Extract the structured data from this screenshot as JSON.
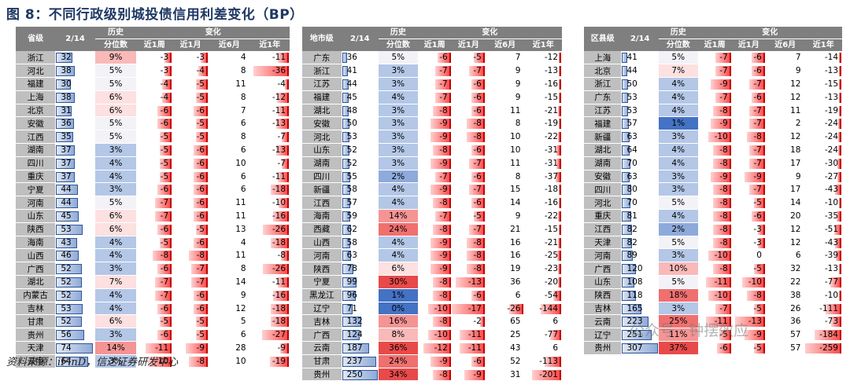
{
  "title": "图 8：不同行政级别城投债信用利差变化（BP）",
  "source": "资料来源：iFinD，信达证券研发中心",
  "watermark": "公众号 · 钟摆效应",
  "tables": [
    {
      "h": {
        "name": "省级",
        "lev": "2/14",
        "pct1": "历史",
        "pct2": "分位数",
        "chg": "变化",
        "w1": "近1周",
        "m1": "近1月",
        "m6": "近6月",
        "y1": "近1年"
      },
      "rows": [
        [
          "浙江",
          32,
          "9%",
          -3,
          -3,
          4,
          -11
        ],
        [
          "河北",
          38,
          "5%",
          -3,
          -4,
          8,
          -36
        ],
        [
          "福建",
          30,
          "5%",
          -4,
          -5,
          11,
          -4
        ],
        [
          "上海",
          38,
          "6%",
          -4,
          -5,
          8,
          -12
        ],
        [
          "北京",
          31,
          "6%",
          -6,
          -6,
          7,
          -11
        ],
        [
          "安徽",
          36,
          "5%",
          -6,
          -5,
          6,
          -13
        ],
        [
          "江西",
          35,
          "5%",
          -5,
          -5,
          8,
          -7
        ],
        [
          "湖南",
          37,
          "3%",
          -5,
          -6,
          6,
          -13
        ],
        [
          "四川",
          37,
          "4%",
          -5,
          -6,
          10,
          -7
        ],
        [
          "重庆",
          37,
          "4%",
          -5,
          -6,
          6,
          -11
        ],
        [
          "宁夏",
          44,
          "3%",
          -6,
          -6,
          6,
          -18
        ],
        [
          "河南",
          44,
          "5%",
          -7,
          -6,
          11,
          -10
        ],
        [
          "山东",
          45,
          "6%",
          -7,
          -6,
          11,
          -16
        ],
        [
          "陕西",
          53,
          "6%",
          -6,
          -5,
          13,
          -26
        ],
        [
          "海南",
          43,
          "4%",
          -5,
          -6,
          4,
          -18
        ],
        [
          "山西",
          46,
          "4%",
          -8,
          -8,
          11,
          -8
        ],
        [
          "广西",
          52,
          "3%",
          -6,
          -7,
          8,
          -26
        ],
        [
          "湖北",
          52,
          "7%",
          -7,
          -7,
          14,
          -11
        ],
        [
          "内蒙古",
          52,
          "4%",
          -7,
          -6,
          9,
          -16
        ],
        [
          "吉林",
          53,
          "4%",
          -6,
          -6,
          12,
          -18
        ],
        [
          "甘肃",
          52,
          "6%",
          -5,
          -5,
          5,
          -18
        ],
        [
          "贵州",
          56,
          "3%",
          -6,
          -5,
          6,
          -27
        ],
        [
          "天津",
          74,
          "14%",
          -11,
          -9,
          28,
          -9
        ],
        [
          "云南",
          64,
          "3%",
          -10,
          -8,
          10,
          -19
        ]
      ]
    },
    {
      "h": {
        "name": "地市级",
        "lev": "2/14",
        "pct1": "历史",
        "pct2": "分位数",
        "chg": "变化",
        "w1": "近1周",
        "m1": "近1月",
        "m6": "近6月",
        "y1": "近1年"
      },
      "rows": [
        [
          "广东",
          36,
          "5%",
          -6,
          -5,
          7,
          -12
        ],
        [
          "浙江",
          41,
          "3%",
          -7,
          -7,
          9,
          -13
        ],
        [
          "江苏",
          44,
          "3%",
          -7,
          -6,
          9,
          -16
        ],
        [
          "福建",
          45,
          "4%",
          -7,
          -6,
          9,
          -15
        ],
        [
          "湖北",
          48,
          "3%",
          -8,
          -6,
          11,
          -21
        ],
        [
          "安徽",
          50,
          "3%",
          -9,
          -8,
          8,
          -19
        ],
        [
          "河北",
          53,
          "3%",
          -9,
          -8,
          10,
          -22
        ],
        [
          "山东",
          52,
          "3%",
          -8,
          -6,
          10,
          -31
        ],
        [
          "湖南",
          52,
          "3%",
          -9,
          -7,
          11,
          -31
        ],
        [
          "四川",
          55,
          "2%",
          -7,
          -6,
          8,
          -37
        ],
        [
          "新疆",
          58,
          "4%",
          -9,
          -7,
          15,
          -18
        ],
        [
          "江西",
          57,
          "4%",
          -8,
          -6,
          14,
          -16
        ],
        [
          "海南",
          59,
          "14%",
          -7,
          -5,
          9,
          -22
        ],
        [
          "西藏",
          62,
          "24%",
          -8,
          -7,
          21,
          -15
        ],
        [
          "山西",
          58,
          "4%",
          -9,
          -8,
          16,
          -21
        ],
        [
          "河南",
          63,
          "4%",
          -9,
          -8,
          16,
          -25
        ],
        [
          "陕西",
          78,
          "6%",
          -9,
          -8,
          19,
          -23
        ],
        [
          "宁夏",
          99,
          "30%",
          -8,
          -13,
          36,
          -20
        ],
        [
          "黑龙江",
          96,
          "1%",
          -8,
          -6,
          6,
          -54
        ],
        [
          "辽宁",
          71,
          "0%",
          -10,
          -17,
          -26,
          -144
        ],
        [
          "吉林",
          132,
          "16%",
          -8,
          -2,
          65,
          6
        ],
        [
          "广西",
          124,
          "8%",
          -10,
          -11,
          25,
          -77
        ],
        [
          "云南",
          187,
          "36%",
          -12,
          -11,
          43,
          6
        ],
        [
          "甘肃",
          237,
          "24%",
          -9,
          -6,
          52,
          -113
        ],
        [
          "贵州",
          250,
          "34%",
          -8,
          -9,
          31,
          -201
        ]
      ]
    },
    {
      "h": {
        "name": "区县级",
        "lev": "2/14",
        "pct1": "历史",
        "pct2": "分位数",
        "chg": "变化",
        "w1": "近1周",
        "m1": "近1月",
        "m6": "近6月",
        "y1": "近1年"
      },
      "rows": [
        [
          "上海",
          41,
          "5%",
          -7,
          -6,
          7,
          -14
        ],
        [
          "北京",
          44,
          "7%",
          -7,
          -6,
          9,
          -13
        ],
        [
          "浙江",
          50,
          "4%",
          -9,
          -7,
          12,
          -15
        ],
        [
          "广东",
          53,
          "4%",
          -7,
          -6,
          12,
          -13
        ],
        [
          "江苏",
          53,
          "4%",
          -8,
          -7,
          11,
          -19
        ],
        [
          "福建",
          57,
          "1%",
          -9,
          -7,
          2,
          -24
        ],
        [
          "新疆",
          63,
          "3%",
          -10,
          -8,
          12,
          -24
        ],
        [
          "湖北",
          64,
          "4%",
          -8,
          -7,
          18,
          -24
        ],
        [
          "湖南",
          70,
          "4%",
          -8,
          -7,
          17,
          -30
        ],
        [
          "安徽",
          63,
          "3%",
          -9,
          -9,
          9,
          -27
        ],
        [
          "四川",
          80,
          "3%",
          -8,
          -7,
          17,
          -43
        ],
        [
          "河北",
          70,
          "5%",
          -8,
          -5,
          14,
          -10
        ],
        [
          "重庆",
          81,
          "4%",
          -8,
          -6,
          20,
          -35
        ],
        [
          "江西",
          82,
          "2%",
          -8,
          -3,
          12,
          -51
        ],
        [
          "天津",
          82,
          "5%",
          -8,
          -3,
          12,
          -43
        ],
        [
          "河南",
          89,
          "3%",
          -10,
          0,
          6,
          -39
        ],
        [
          "广西",
          120,
          "10%",
          -8,
          -5,
          32,
          -13
        ],
        [
          "山东",
          108,
          "5%",
          -11,
          -10,
          22,
          -77
        ],
        [
          "陕西",
          118,
          "18%",
          -10,
          -8,
          38,
          -10
        ],
        [
          "吉林",
          165,
          "3%",
          -7,
          -5,
          26,
          -111
        ],
        [
          "云南",
          223,
          "25%",
          -11,
          -13,
          36,
          -73
        ],
        [
          "辽宁",
          251,
          "11%",
          -5,
          -9,
          57,
          -184
        ],
        [
          "贵州",
          307,
          "37%",
          -6,
          -5,
          57,
          -259
        ]
      ]
    }
  ]
}
